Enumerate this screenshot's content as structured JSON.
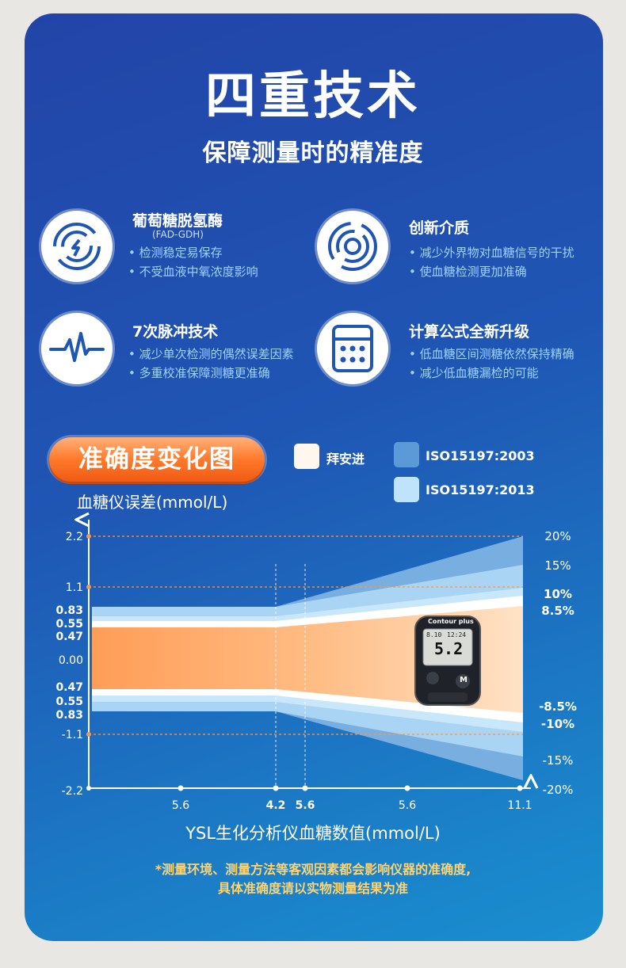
{
  "header": {
    "title": "四重技术",
    "subtitle": "保障测量时的精准度"
  },
  "features": [
    {
      "icon": "enzyme-signal-icon",
      "title": "葡萄糖脱氢酶",
      "sub": "(FAD-GDH)",
      "bullets": [
        "• 检测稳定易保存",
        "• 不受血液中氧浓度影响"
      ]
    },
    {
      "icon": "concentric-circles-icon",
      "title": "创新介质",
      "sub": "",
      "bullets": [
        "• 减少外界物对血糖信号的干扰",
        "• 使血糖检测更加准确"
      ]
    },
    {
      "icon": "pulse-wave-icon",
      "title": "7次脉冲技术",
      "sub": "",
      "bullets": [
        "• 减少单次检测的偶然误差因素",
        "• 多重校准保障测糖更准确"
      ]
    },
    {
      "icon": "calculator-icon",
      "title": "计算公式全新升级",
      "sub": "",
      "bullets": [
        "• 低血糖区间测糖依然保持精确",
        "• 减少低血糖漏检的可能"
      ]
    }
  ],
  "chart_section": {
    "badge": "准确度变化图",
    "legend": [
      {
        "label": "拜安进",
        "color": "#fff7ee"
      },
      {
        "label": "ISO15197:2003",
        "color": "#5b9ad6"
      },
      {
        "label": "ISO15197:2013",
        "color": "#bfe3fb"
      }
    ],
    "ylabel": "血糖仪误差(mmol/L)",
    "xlabel": "YSL生化分析仪血糖数值(mmol/L)",
    "note_line1": "*测量环境、测量方法等客观因素都会影响仪器的准确度,",
    "note_line2": "具体准确度请以实物测量结果为准"
  },
  "meter": {
    "brand": "Contour plus",
    "date": "8.10",
    "time": "12:24",
    "reading": "5.2",
    "button": "M"
  },
  "chart_data": {
    "type": "area",
    "title": "准确度变化图",
    "xlabel": "YSL生化分析仪血糖数值(mmol/L)",
    "ylabel": "血糖仪误差(mmol/L)",
    "x_ticks": [
      "5.6",
      "4.2",
      "5.6",
      "5.6",
      "11.1"
    ],
    "y_ticks_left": [
      "2.2",
      "1.1",
      "0.83",
      "0.55",
      "0.47",
      "0.00",
      "0.47",
      "0.55",
      "0.83",
      "-1.1",
      "-2.2"
    ],
    "y_ticks_right": [
      "20%",
      "15%",
      "10%",
      "8.5%",
      "-8.5%",
      "-10%",
      "-15%",
      "-20%"
    ],
    "reference_lines_x": [
      4.2,
      5.6
    ],
    "reference_lines_y": [
      2.2,
      1.1,
      -1.1
    ],
    "series": [
      {
        "name": "ISO15197:2003",
        "flat_limit": 0.83,
        "percent_limit": 20
      },
      {
        "name": "ISO15197:2013",
        "flat_limit": 0.83,
        "percent_limit": 15
      },
      {
        "name": "拜安进",
        "flat_limit": 0.47,
        "percent_limit": 8.5
      }
    ],
    "legend": "top-right",
    "grid": false
  }
}
